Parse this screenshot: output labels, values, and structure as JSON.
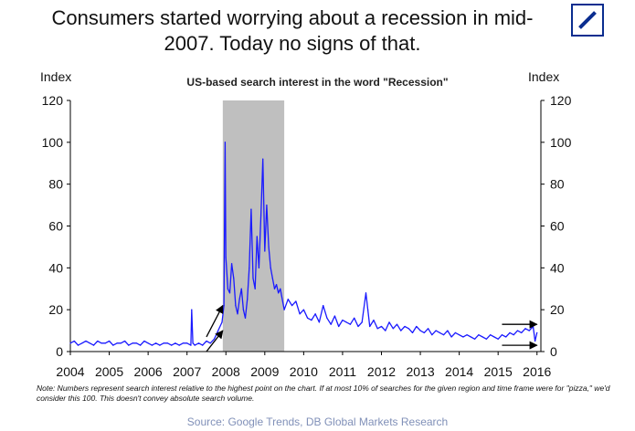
{
  "headline": "Consumers started worrying about a recession in mid-2007. Today no signs of that.",
  "logo": {
    "name": "deutsche-bank-logo",
    "color": "#0a2d8f"
  },
  "note": "Note: Numbers represent search interest relative to the highest point on the chart. If at most 10% of searches for the given region and time frame were for \"pizza,\" we'd consider this 100. This doesn't convey absolute search volume.",
  "source": "Source: Google Trends, DB Global Markets Research",
  "chart_data": {
    "type": "line",
    "title": "US-based search interest in the word \"Recession\"",
    "ylabel_left": "Index",
    "ylabel_right": "Index",
    "xlabel": "",
    "xlim": [
      2004,
      2016.1
    ],
    "ylim": [
      0,
      120
    ],
    "x_ticks": [
      "2004",
      "2005",
      "2006",
      "2007",
      "2008",
      "2009",
      "2010",
      "2011",
      "2012",
      "2013",
      "2014",
      "2015",
      "2016"
    ],
    "y_ticks": [
      "0",
      "20",
      "40",
      "60",
      "80",
      "100",
      "120"
    ],
    "grid": false,
    "line_color": "#1a1aff",
    "shade_color": "#bfbfbf",
    "recession_shading": [
      2007.92,
      2009.5
    ],
    "arrows": [
      {
        "from": [
          2007.5,
          0
        ],
        "to": [
          2007.92,
          10
        ]
      },
      {
        "from": [
          2007.5,
          7
        ],
        "to": [
          2007.92,
          22
        ]
      },
      {
        "from": [
          2015.1,
          13
        ],
        "to": [
          2016.0,
          13
        ]
      },
      {
        "from": [
          2015.1,
          3
        ],
        "to": [
          2016.0,
          3
        ]
      }
    ],
    "series": [
      {
        "name": "",
        "x": [
          2004.0,
          2004.1,
          2004.2,
          2004.3,
          2004.4,
          2004.5,
          2004.6,
          2004.7,
          2004.8,
          2004.9,
          2005.0,
          2005.1,
          2005.2,
          2005.3,
          2005.4,
          2005.5,
          2005.6,
          2005.7,
          2005.8,
          2005.9,
          2006.0,
          2006.1,
          2006.2,
          2006.3,
          2006.4,
          2006.5,
          2006.6,
          2006.7,
          2006.8,
          2006.9,
          2007.0,
          2007.1,
          2007.12,
          2007.15,
          2007.2,
          2007.3,
          2007.4,
          2007.5,
          2007.6,
          2007.7,
          2007.8,
          2007.9,
          2007.95,
          2007.98,
          2008.0,
          2008.05,
          2008.1,
          2008.15,
          2008.2,
          2008.25,
          2008.3,
          2008.35,
          2008.4,
          2008.45,
          2008.5,
          2008.55,
          2008.6,
          2008.65,
          2008.7,
          2008.75,
          2008.8,
          2008.85,
          2008.9,
          2008.95,
          2009.0,
          2009.05,
          2009.1,
          2009.15,
          2009.2,
          2009.25,
          2009.3,
          2009.35,
          2009.4,
          2009.5,
          2009.6,
          2009.7,
          2009.8,
          2009.9,
          2010.0,
          2010.1,
          2010.2,
          2010.3,
          2010.4,
          2010.5,
          2010.6,
          2010.7,
          2010.8,
          2010.9,
          2011.0,
          2011.1,
          2011.2,
          2011.3,
          2011.4,
          2011.5,
          2011.6,
          2011.65,
          2011.7,
          2011.8,
          2011.9,
          2012.0,
          2012.1,
          2012.2,
          2012.3,
          2012.4,
          2012.5,
          2012.6,
          2012.7,
          2012.8,
          2012.9,
          2013.0,
          2013.1,
          2013.2,
          2013.3,
          2013.4,
          2013.5,
          2013.6,
          2013.7,
          2013.8,
          2013.9,
          2014.0,
          2014.1,
          2014.2,
          2014.3,
          2014.4,
          2014.5,
          2014.6,
          2014.7,
          2014.8,
          2014.9,
          2015.0,
          2015.1,
          2015.2,
          2015.3,
          2015.4,
          2015.5,
          2015.6,
          2015.7,
          2015.8,
          2015.9,
          2015.95,
          2016.0
        ],
        "y": [
          4,
          5,
          3,
          4,
          5,
          4,
          3,
          5,
          4,
          4,
          5,
          3,
          4,
          4,
          5,
          3,
          4,
          4,
          3,
          5,
          4,
          3,
          4,
          3,
          4,
          4,
          3,
          4,
          3,
          4,
          4,
          3,
          20,
          4,
          3,
          4,
          3,
          5,
          4,
          6,
          10,
          14,
          22,
          100,
          45,
          30,
          28,
          42,
          35,
          22,
          18,
          25,
          30,
          20,
          16,
          25,
          40,
          68,
          35,
          30,
          55,
          40,
          65,
          92,
          48,
          70,
          50,
          40,
          35,
          30,
          32,
          28,
          30,
          20,
          25,
          22,
          24,
          18,
          20,
          16,
          15,
          18,
          14,
          22,
          16,
          13,
          17,
          12,
          15,
          14,
          13,
          16,
          12,
          14,
          28,
          20,
          12,
          15,
          11,
          12,
          10,
          14,
          11,
          13,
          10,
          12,
          11,
          9,
          12,
          10,
          9,
          11,
          8,
          10,
          9,
          8,
          10,
          7,
          9,
          8,
          7,
          8,
          7,
          6,
          8,
          7,
          6,
          8,
          7,
          6,
          8,
          7,
          9,
          8,
          10,
          9,
          11,
          10,
          12,
          5,
          9
        ]
      }
    ]
  }
}
